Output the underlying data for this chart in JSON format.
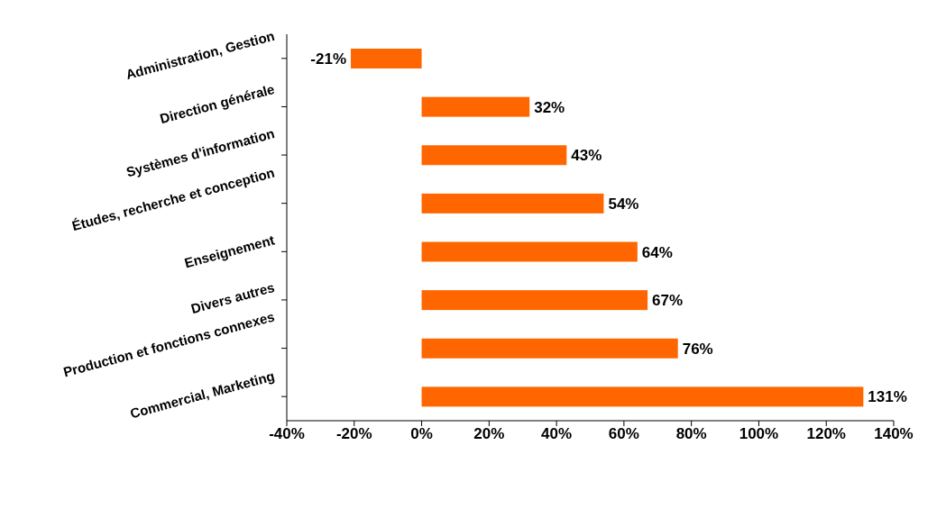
{
  "chart_data": {
    "type": "bar",
    "orientation": "horizontal",
    "categories": [
      "Administration, Gestion",
      "Direction générale",
      "Systèmes d'information",
      "Études, recherche et conception",
      "Enseignement",
      "Divers autres",
      "Production et fonctions connexes",
      "Commercial, Marketing"
    ],
    "values": [
      -21,
      32,
      43,
      54,
      64,
      67,
      76,
      131
    ],
    "value_labels": [
      "-21%",
      "32%",
      "43%",
      "54%",
      "64%",
      "67%",
      "76%",
      "131%"
    ],
    "color": "#ff6600",
    "xlim": [
      -40,
      140
    ],
    "xticks": [
      {
        "value": -40,
        "label": "-40%"
      },
      {
        "value": -20,
        "label": "-20%"
      },
      {
        "value": 0,
        "label": "0%"
      },
      {
        "value": 20,
        "label": "20%"
      },
      {
        "value": 40,
        "label": "40%"
      },
      {
        "value": 60,
        "label": "60%"
      },
      {
        "value": 80,
        "label": "80%"
      },
      {
        "value": 100,
        "label": "100%"
      },
      {
        "value": 120,
        "label": "120%"
      },
      {
        "value": 140,
        "label": "140%"
      }
    ],
    "grid": false,
    "legend": false
  }
}
